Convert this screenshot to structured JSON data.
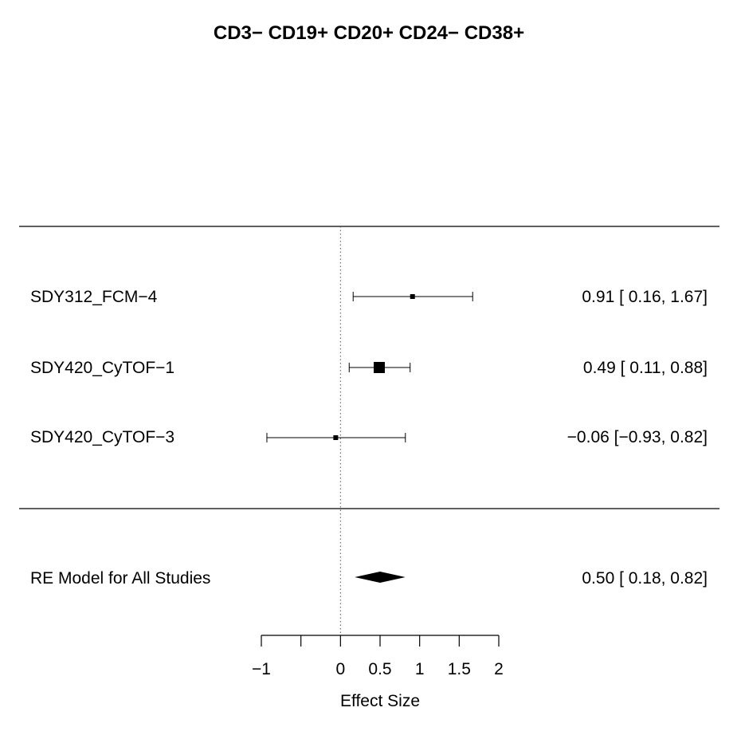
{
  "chart_data": {
    "type": "forest",
    "title": "CD3− CD19+ CD20+ CD24− CD38+",
    "xlabel": "Effect Size",
    "xlim": [
      -1,
      2
    ],
    "xticks": [
      -1,
      -0.5,
      0,
      0.5,
      1,
      1.5,
      2
    ],
    "xtick_labels": [
      "−1",
      "",
      "0",
      "0.5",
      "1",
      "1.5",
      "2"
    ],
    "reference_line": 0,
    "studies": [
      {
        "label": "SDY312_FCM−4",
        "estimate": 0.91,
        "ci_low": 0.16,
        "ci_high": 1.67,
        "weight": "small",
        "text": "0.91 [ 0.16, 1.67]"
      },
      {
        "label": "SDY420_CyTOF−1",
        "estimate": 0.49,
        "ci_low": 0.11,
        "ci_high": 0.88,
        "weight": "large",
        "text": "0.49 [ 0.11, 0.88]"
      },
      {
        "label": "SDY420_CyTOF−3",
        "estimate": -0.06,
        "ci_low": -0.93,
        "ci_high": 0.82,
        "weight": "small",
        "text": "−0.06 [−0.93, 0.82]"
      }
    ],
    "summary": {
      "label": "RE Model for All Studies",
      "estimate": 0.5,
      "ci_low": 0.18,
      "ci_high": 0.82,
      "text": "0.50 [ 0.18, 0.82]"
    }
  }
}
